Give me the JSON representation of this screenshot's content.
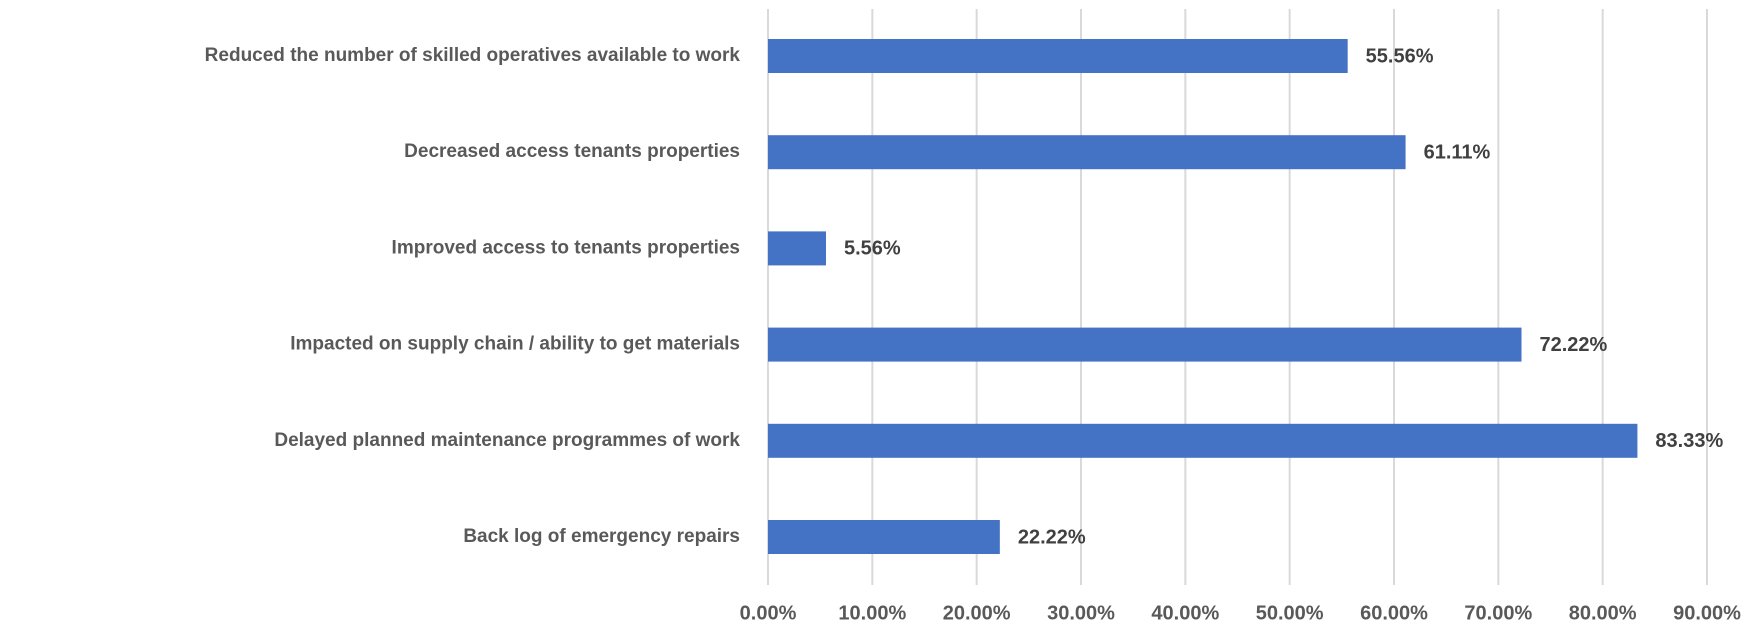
{
  "chart_data": {
    "type": "bar",
    "orientation": "horizontal",
    "categories": [
      "Reduced the number of skilled operatives available to work",
      "Decreased access tenants properties",
      "Improved access to tenants properties",
      "Impacted on supply chain / ability to get materials",
      "Delayed planned maintenance programmes of work",
      "Back log of emergency repairs"
    ],
    "values": [
      55.56,
      61.11,
      5.56,
      72.22,
      83.33,
      22.22
    ],
    "value_labels": [
      "55.56%",
      "61.11%",
      "5.56%",
      "72.22%",
      "83.33%",
      "22.22%"
    ],
    "color": "#4472c4",
    "xlim": [
      0,
      90
    ],
    "xticks": [
      {
        "value": 0,
        "label": "0.00%"
      },
      {
        "value": 10,
        "label": "10.00%"
      },
      {
        "value": 20,
        "label": "20.00%"
      },
      {
        "value": 30,
        "label": "30.00%"
      },
      {
        "value": 40,
        "label": "40.00%"
      },
      {
        "value": 50,
        "label": "50.00%"
      },
      {
        "value": 60,
        "label": "60.00%"
      },
      {
        "value": 70,
        "label": "70.00%"
      },
      {
        "value": 80,
        "label": "80.00%"
      },
      {
        "value": 90,
        "label": "90.00%"
      }
    ],
    "grid": true
  }
}
